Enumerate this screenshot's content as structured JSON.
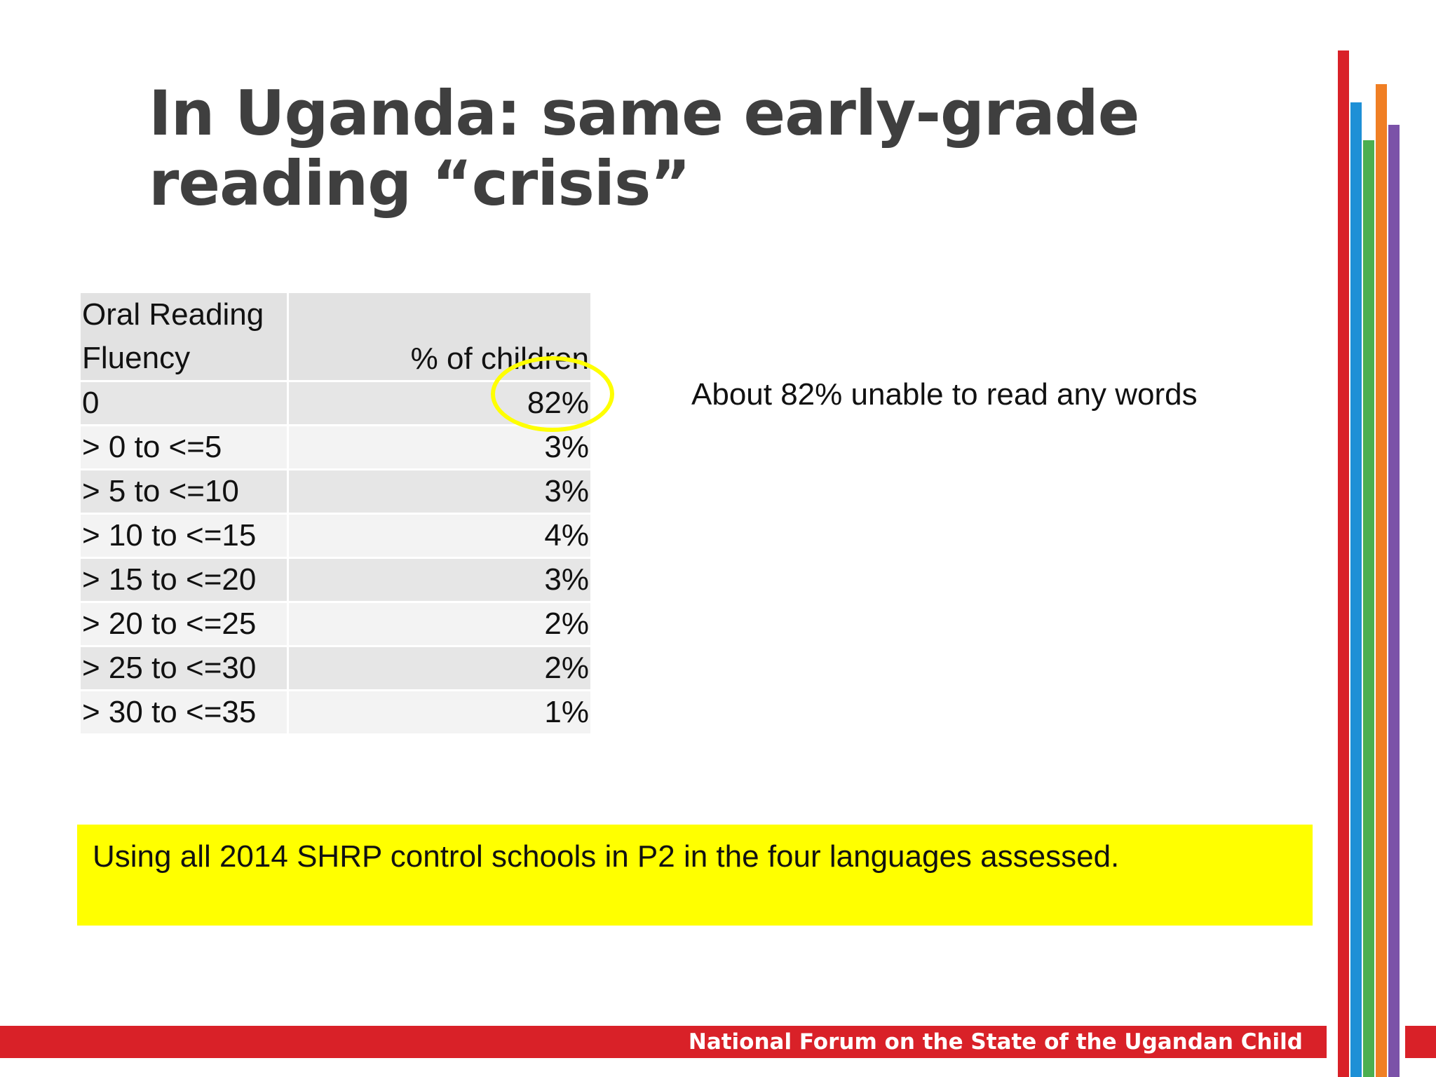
{
  "slide": {
    "title_line1": "In Uganda: same early-grade",
    "title_line2": "reading “crisis”",
    "table": {
      "header": {
        "band_line1": "Oral Reading",
        "band_line2": "Fluency",
        "pct": "% of children"
      },
      "rows": [
        {
          "band": "0",
          "pct": "82%"
        },
        {
          "band": "> 0 to <=5",
          "pct": "3%"
        },
        {
          "band": "> 5 to <=10",
          "pct": "3%"
        },
        {
          "band": "> 10 to <=15",
          "pct": "4%"
        },
        {
          "band": "> 15 to <=20",
          "pct": "3%"
        },
        {
          "band": "> 20 to <=25",
          "pct": "2%"
        },
        {
          "band": "> 25 to <=30",
          "pct": "2%"
        },
        {
          "band": "> 30 to <=35",
          "pct": "1%"
        }
      ]
    },
    "note": "About 82% unable to read any words",
    "source": "Using all 2014 SHRP control schools in P2 in the four languages assessed.",
    "footer": "National Forum on the State of the Ugandan Child"
  },
  "colors": {
    "title": "#3f3f3f",
    "highlight": "#ffff00",
    "footer_bar": "#d92128",
    "stripes": [
      "#d92128",
      "#1e90d6",
      "#4caf50",
      "#f07f24",
      "#7b52a8"
    ]
  }
}
